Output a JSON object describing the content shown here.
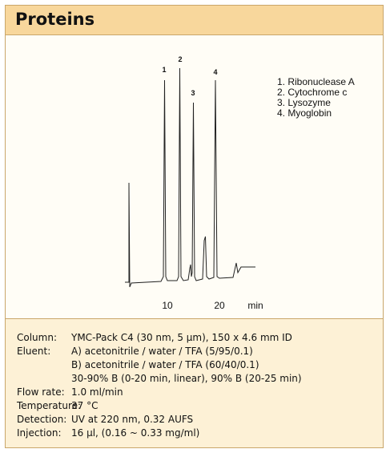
{
  "header": {
    "title": "Proteins"
  },
  "figure": {
    "peak_labels": [
      "1",
      "2",
      "3",
      "4"
    ],
    "legend": [
      "1. Ribonuclease A",
      "2. Cytochrome c",
      "3. Lysozyme",
      "4. Myoglobin"
    ],
    "x_ticks": [
      "10",
      "20"
    ],
    "x_unit": "min"
  },
  "conditions": [
    {
      "label": "Column:",
      "lines": [
        "YMC-Pack C4 (30 nm, 5 µm), 150 x 4.6 mm ID"
      ]
    },
    {
      "label": "Eluent:",
      "lines": [
        "A) acetonitrile / water / TFA (5/95/0.1)",
        "B) acetonitrile / water / TFA (60/40/0.1)",
        "30-90% B (0-20 min, linear), 90% B (20-25 min)"
      ]
    },
    {
      "label": "Flow rate:",
      "lines": [
        "1.0 ml/min"
      ]
    },
    {
      "label": "Temperature:",
      "lines": [
        "37 °C"
      ]
    },
    {
      "label": "Detection:",
      "lines": [
        "UV at 220 nm, 0.32 AUFS"
      ]
    },
    {
      "label": "Injection:",
      "lines": [
        "16 µl, (0.16 ~ 0.33 mg/ml)"
      ]
    }
  ]
}
